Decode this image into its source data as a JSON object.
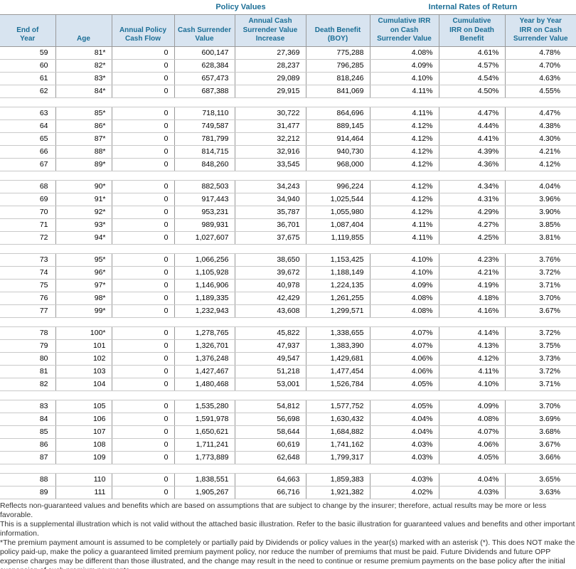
{
  "titles": {
    "policy_values": "Policy Values",
    "internal_rates": "Internal Rates of Return"
  },
  "columns": [
    "End of\nYear",
    "Age",
    "Annual Policy\nCash Flow",
    "Cash Surrender\nValue",
    "Annual Cash\nSurrender Value\nIncrease",
    "Death Benefit\n(BOY)",
    "Cumulative IRR\non Cash\nSurrender Value",
    "Cumulative\nIRR on Death\nBenefit",
    "Year by Year\nIRR on Cash\nSurrender Value"
  ],
  "column_keys": [
    "end-of-year",
    "age",
    "annual-policy-cash-flow",
    "cash-surrender-value",
    "annual-csv-increase",
    "death-benefit-boy",
    "cumulative-irr-csv",
    "cumulative-irr-death-benefit",
    "year-by-year-irr-csv"
  ],
  "table": {
    "groups": [
      {
        "rows": [
          [
            "59",
            "81*",
            "0",
            "600,147",
            "27,369",
            "775,288",
            "4.08%",
            "4.61%",
            "4.78%"
          ],
          [
            "60",
            "82*",
            "0",
            "628,384",
            "28,237",
            "796,285",
            "4.09%",
            "4.57%",
            "4.70%"
          ],
          [
            "61",
            "83*",
            "0",
            "657,473",
            "29,089",
            "818,246",
            "4.10%",
            "4.54%",
            "4.63%"
          ],
          [
            "62",
            "84*",
            "0",
            "687,388",
            "29,915",
            "841,069",
            "4.11%",
            "4.50%",
            "4.55%"
          ]
        ]
      },
      {
        "rows": [
          [
            "63",
            "85*",
            "0",
            "718,110",
            "30,722",
            "864,696",
            "4.11%",
            "4.47%",
            "4.47%"
          ],
          [
            "64",
            "86*",
            "0",
            "749,587",
            "31,477",
            "889,145",
            "4.12%",
            "4.44%",
            "4.38%"
          ],
          [
            "65",
            "87*",
            "0",
            "781,799",
            "32,212",
            "914,464",
            "4.12%",
            "4.41%",
            "4.30%"
          ],
          [
            "66",
            "88*",
            "0",
            "814,715",
            "32,916",
            "940,730",
            "4.12%",
            "4.39%",
            "4.21%"
          ],
          [
            "67",
            "89*",
            "0",
            "848,260",
            "33,545",
            "968,000",
            "4.12%",
            "4.36%",
            "4.12%"
          ]
        ]
      },
      {
        "rows": [
          [
            "68",
            "90*",
            "0",
            "882,503",
            "34,243",
            "996,224",
            "4.12%",
            "4.34%",
            "4.04%"
          ],
          [
            "69",
            "91*",
            "0",
            "917,443",
            "34,940",
            "1,025,544",
            "4.12%",
            "4.31%",
            "3.96%"
          ],
          [
            "70",
            "92*",
            "0",
            "953,231",
            "35,787",
            "1,055,980",
            "4.12%",
            "4.29%",
            "3.90%"
          ],
          [
            "71",
            "93*",
            "0",
            "989,931",
            "36,701",
            "1,087,404",
            "4.11%",
            "4.27%",
            "3.85%"
          ],
          [
            "72",
            "94*",
            "0",
            "1,027,607",
            "37,675",
            "1,119,855",
            "4.11%",
            "4.25%",
            "3.81%"
          ]
        ]
      },
      {
        "rows": [
          [
            "73",
            "95*",
            "0",
            "1,066,256",
            "38,650",
            "1,153,425",
            "4.10%",
            "4.23%",
            "3.76%"
          ],
          [
            "74",
            "96*",
            "0",
            "1,105,928",
            "39,672",
            "1,188,149",
            "4.10%",
            "4.21%",
            "3.72%"
          ],
          [
            "75",
            "97*",
            "0",
            "1,146,906",
            "40,978",
            "1,224,135",
            "4.09%",
            "4.19%",
            "3.71%"
          ],
          [
            "76",
            "98*",
            "0",
            "1,189,335",
            "42,429",
            "1,261,255",
            "4.08%",
            "4.18%",
            "3.70%"
          ],
          [
            "77",
            "99*",
            "0",
            "1,232,943",
            "43,608",
            "1,299,571",
            "4.08%",
            "4.16%",
            "3.67%"
          ]
        ]
      },
      {
        "rows": [
          [
            "78",
            "100*",
            "0",
            "1,278,765",
            "45,822",
            "1,338,655",
            "4.07%",
            "4.14%",
            "3.72%"
          ],
          [
            "79",
            "101",
            "0",
            "1,326,701",
            "47,937",
            "1,383,390",
            "4.07%",
            "4.13%",
            "3.75%"
          ],
          [
            "80",
            "102",
            "0",
            "1,376,248",
            "49,547",
            "1,429,681",
            "4.06%",
            "4.12%",
            "3.73%"
          ],
          [
            "81",
            "103",
            "0",
            "1,427,467",
            "51,218",
            "1,477,454",
            "4.06%",
            "4.11%",
            "3.72%"
          ],
          [
            "82",
            "104",
            "0",
            "1,480,468",
            "53,001",
            "1,526,784",
            "4.05%",
            "4.10%",
            "3.71%"
          ]
        ]
      },
      {
        "rows": [
          [
            "83",
            "105",
            "0",
            "1,535,280",
            "54,812",
            "1,577,752",
            "4.05%",
            "4.09%",
            "3.70%"
          ],
          [
            "84",
            "106",
            "0",
            "1,591,978",
            "56,698",
            "1,630,432",
            "4.04%",
            "4.08%",
            "3.69%"
          ],
          [
            "85",
            "107",
            "0",
            "1,650,621",
            "58,644",
            "1,684,882",
            "4.04%",
            "4.07%",
            "3.68%"
          ],
          [
            "86",
            "108",
            "0",
            "1,711,241",
            "60,619",
            "1,741,162",
            "4.03%",
            "4.06%",
            "3.67%"
          ],
          [
            "87",
            "109",
            "0",
            "1,773,889",
            "62,648",
            "1,799,317",
            "4.03%",
            "4.05%",
            "3.66%"
          ]
        ]
      },
      {
        "rows": [
          [
            "88",
            "110",
            "0",
            "1,838,551",
            "64,663",
            "1,859,383",
            "4.03%",
            "4.04%",
            "3.65%"
          ],
          [
            "89",
            "111",
            "0",
            "1,905,267",
            "66,716",
            "1,921,382",
            "4.02%",
            "4.03%",
            "3.63%"
          ]
        ]
      }
    ]
  },
  "footnotes": [
    "Reflects non-guaranteed values and benefits which are based on assumptions that are subject to change by the insurer; therefore, actual results may be more or less favorable.",
    "This is a supplemental illustration which is not valid without the attached basic illustration.  Refer to the basic illustration for guaranteed values and benefits and other important information.",
    "*The premium payment amount is assumed to be completely or partially paid by Dividends or policy values in the year(s) marked with an asterisk (*). This does NOT make the policy paid-up, make the policy a guaranteed limited premium payment policy, nor reduce the number of premiums that must be paid.  Future Dividends and future OPP expense charges may be different than those illustrated, and the change may result in the need to continue or resume premium payments on the base policy after the initial suspension of such premium payments."
  ],
  "colors": {
    "accent_teal": "#1b6e96",
    "header_bg": "#d8e4f0",
    "border_dark": "#9a9a9a",
    "border_light": "#c9c9c9",
    "footnote_text": "#333333"
  }
}
